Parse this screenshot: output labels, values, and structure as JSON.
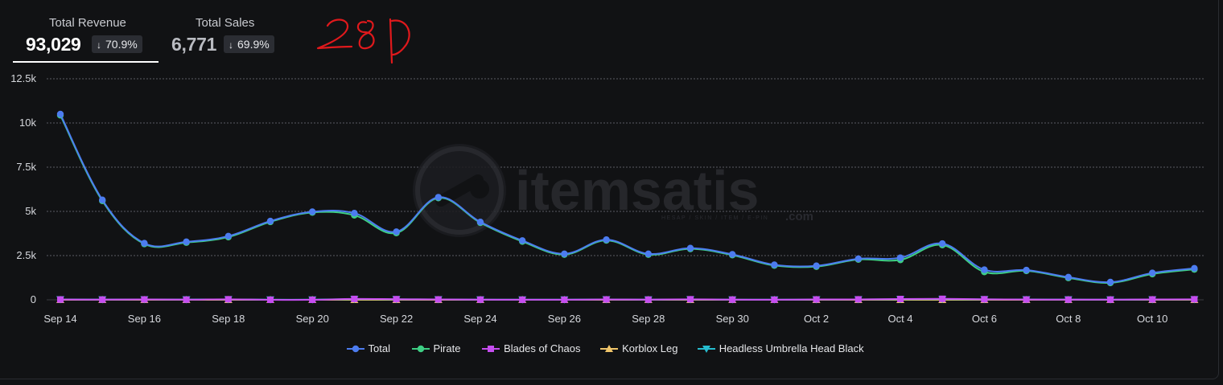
{
  "metrics": {
    "revenue": {
      "label": "Total Revenue",
      "value": "93,029",
      "change": "70.9%",
      "direction": "down"
    },
    "sales": {
      "label": "Total Sales",
      "value": "6,771",
      "change": "69.9%",
      "direction": "down"
    }
  },
  "annotation": {
    "text": "28D",
    "color": "#e0191c"
  },
  "watermark": {
    "brand": "itemsatis",
    "tagline": "HESAP / SKIN / ITEM / E-PIN",
    "domain": ".com"
  },
  "chart_data": {
    "type": "line",
    "x": [
      "Sep 14",
      "Sep 15",
      "Sep 16",
      "Sep 17",
      "Sep 18",
      "Sep 19",
      "Sep 20",
      "Sep 21",
      "Sep 22",
      "Sep 23",
      "Sep 24",
      "Sep 25",
      "Sep 26",
      "Sep 27",
      "Sep 28",
      "Sep 29",
      "Sep 30",
      "Oct 1",
      "Oct 2",
      "Oct 3",
      "Oct 4",
      "Oct 5",
      "Oct 6",
      "Oct 7",
      "Oct 8",
      "Oct 9",
      "Oct 10",
      "Oct 11"
    ],
    "x_ticks": [
      "Sep 14",
      "Sep 16",
      "Sep 18",
      "Sep 20",
      "Sep 22",
      "Sep 24",
      "Sep 26",
      "Sep 28",
      "Sep 30",
      "Oct 2",
      "Oct 4",
      "Oct 6",
      "Oct 8",
      "Oct 10"
    ],
    "y_ticks": [
      "0",
      "2.5k",
      "5k",
      "7.5k",
      "10k",
      "12.5k"
    ],
    "ylim": [
      0,
      12500
    ],
    "grid": true,
    "legend_position": "bottom",
    "series": [
      {
        "name": "Total",
        "color": "#4c7cf0",
        "marker": "circle",
        "values": [
          10500,
          5650,
          3200,
          3280,
          3600,
          4450,
          4980,
          4900,
          3850,
          5800,
          4400,
          3350,
          2600,
          3400,
          2600,
          2920,
          2570,
          1980,
          1920,
          2320,
          2380,
          3180,
          1700,
          1680,
          1280,
          1000,
          1520,
          1780
        ]
      },
      {
        "name": "Pirate",
        "color": "#3ecf84",
        "marker": "circle",
        "values": [
          10440,
          5600,
          3160,
          3240,
          3550,
          4410,
          4940,
          4780,
          3780,
          5760,
          4360,
          3300,
          2560,
          3360,
          2560,
          2880,
          2530,
          1940,
          1880,
          2280,
          2260,
          3100,
          1580,
          1640,
          1240,
          960,
          1460,
          1720
        ]
      },
      {
        "name": "Blades of Chaos",
        "color": "#c64df0",
        "marker": "square",
        "values": [
          15,
          10,
          20,
          10,
          30,
          0,
          0,
          50,
          35,
          20,
          10,
          5,
          5,
          20,
          10,
          30,
          10,
          5,
          20,
          25,
          45,
          55,
          30,
          15,
          10,
          10,
          20,
          30
        ]
      },
      {
        "name": "Korblox Leg",
        "color": "#f0c56a",
        "marker": "triangle",
        "values": [
          0,
          0,
          0,
          0,
          0,
          0,
          0,
          0,
          0,
          0,
          0,
          0,
          0,
          0,
          0,
          0,
          0,
          0,
          0,
          0,
          0,
          0,
          0,
          0,
          0,
          0,
          0,
          0
        ]
      },
      {
        "name": "Headless Umbrella Head Black",
        "color": "#26bdd0",
        "marker": "triangle-down",
        "values": [
          20,
          15,
          20,
          15,
          25,
          10,
          10,
          40,
          30,
          25,
          10,
          10,
          10,
          20,
          10,
          25,
          10,
          10,
          15,
          20,
          35,
          40,
          30,
          20,
          15,
          10,
          15,
          25
        ]
      }
    ]
  }
}
